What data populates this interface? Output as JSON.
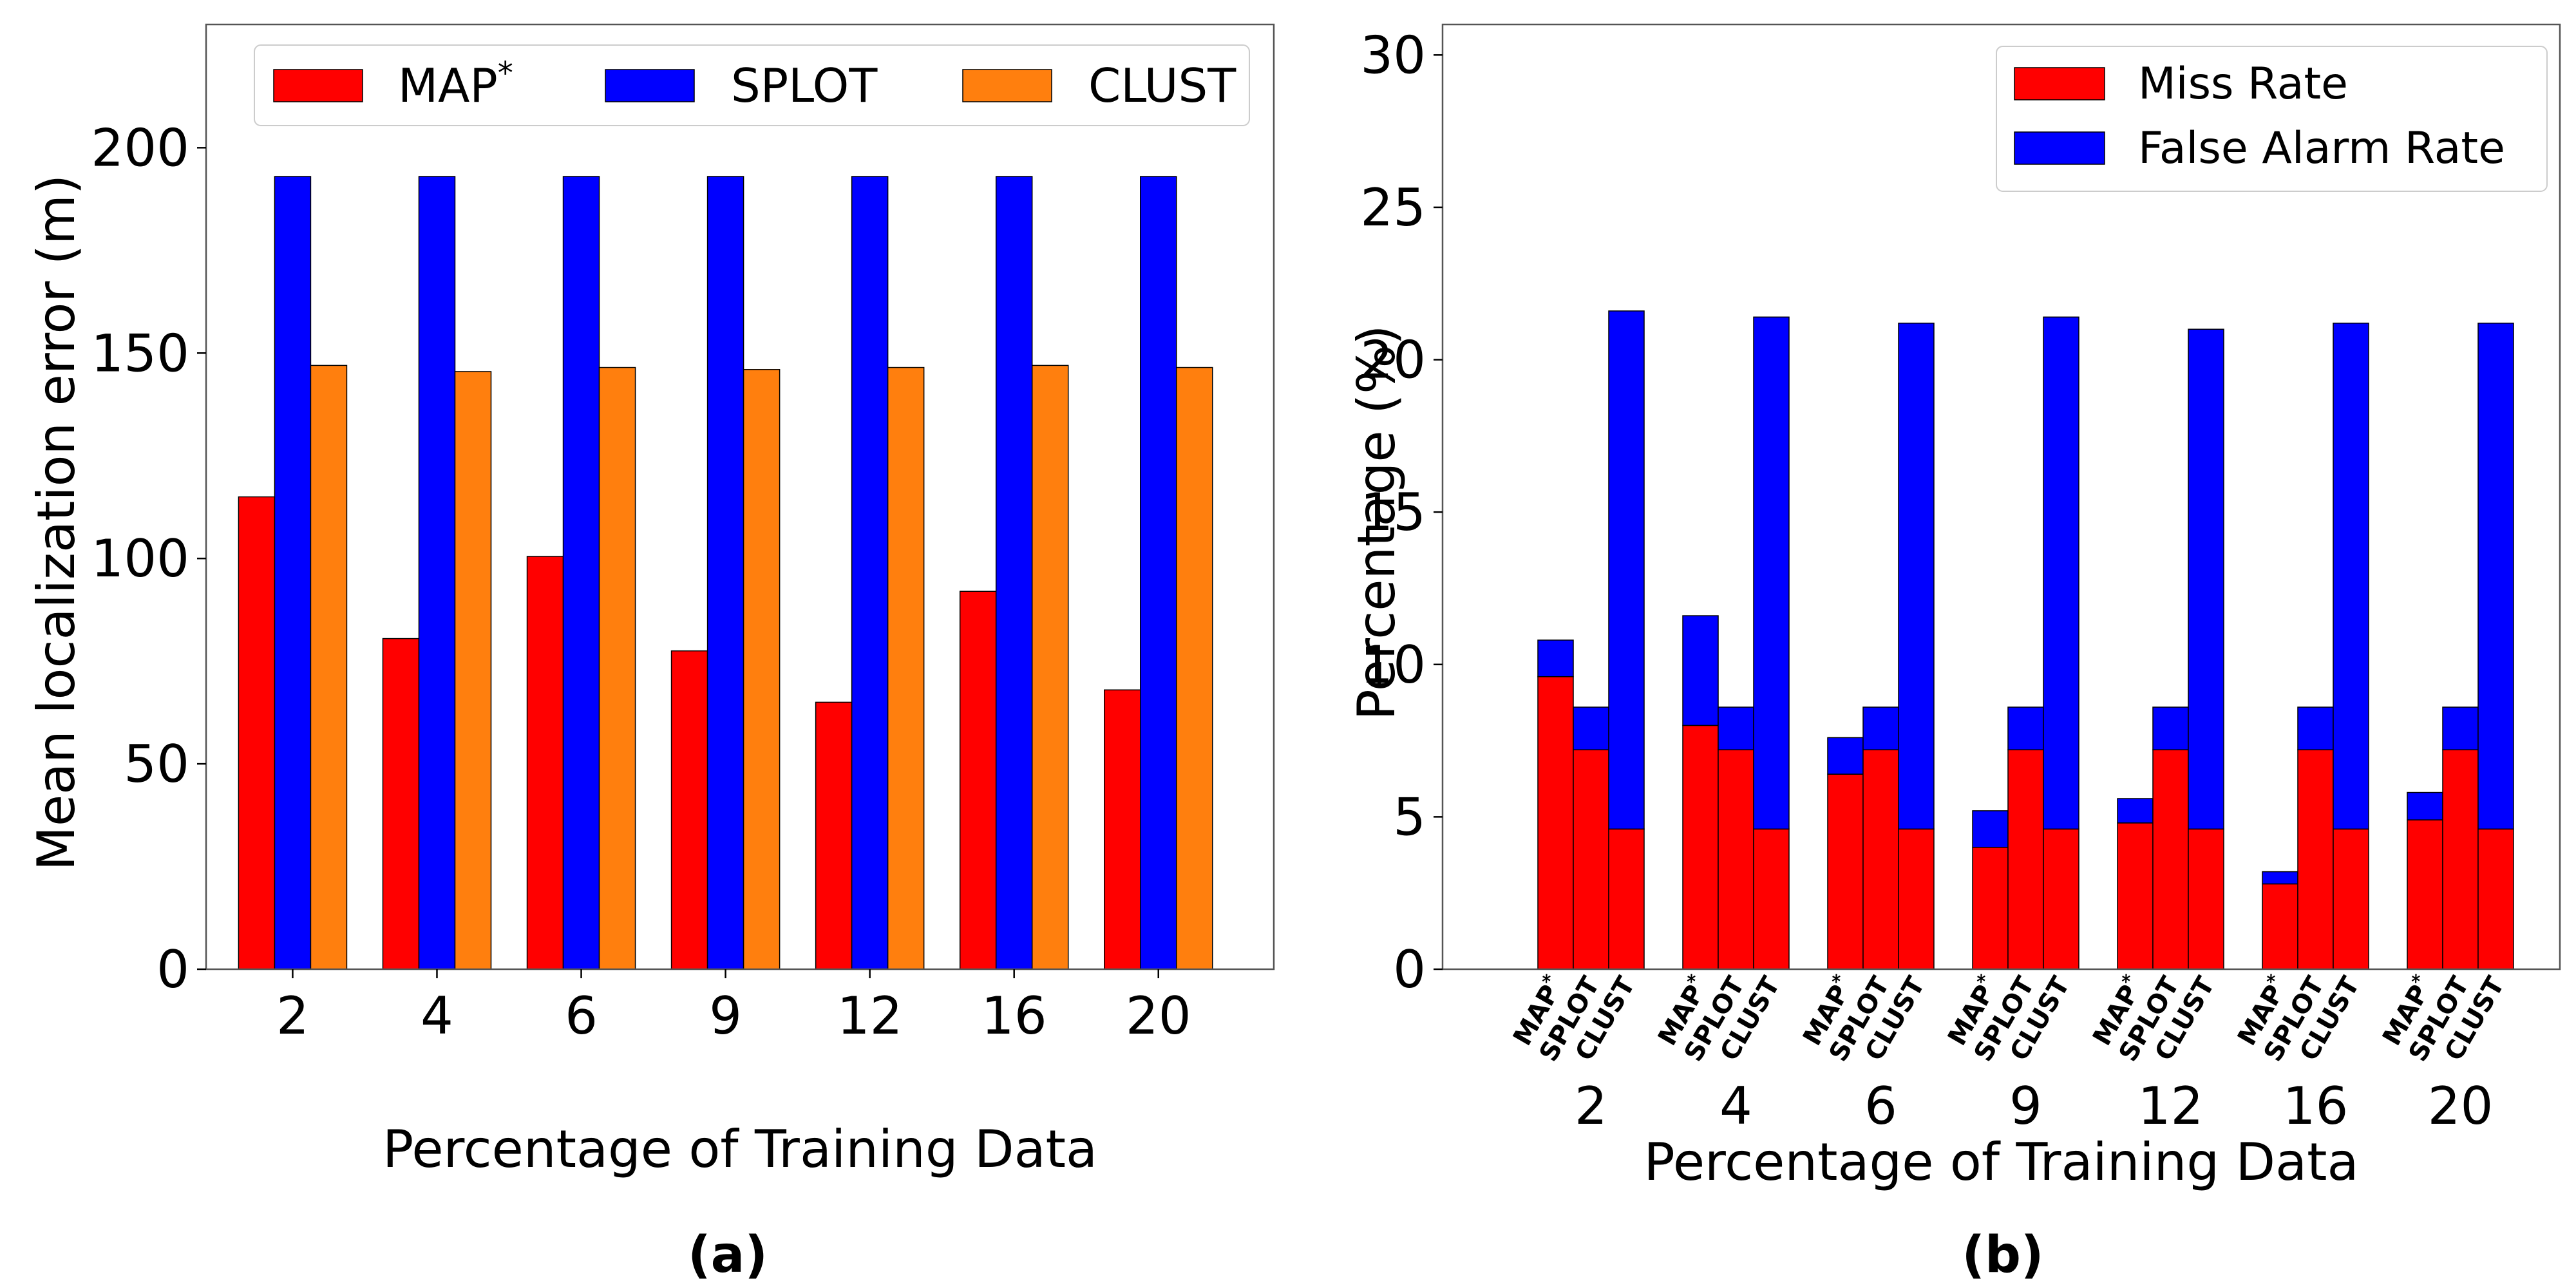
{
  "panel_labels": {
    "a": "(a)",
    "b": "(b)"
  },
  "colors": {
    "map": "#ff0000",
    "splot": "#0000ff",
    "clust": "#ff7f0e",
    "miss": "#ff0000",
    "false_alarm": "#0000ff"
  },
  "chart_data": [
    {
      "type": "bar",
      "title": "",
      "xlabel": "Percentage of Training Data",
      "ylabel": "Mean localization error (m)",
      "categories": [
        "2",
        "4",
        "6",
        "9",
        "12",
        "16",
        "20"
      ],
      "ylim": [
        0,
        230
      ],
      "yticks": [
        0,
        50,
        100,
        150,
        200
      ],
      "grid": false,
      "legend": {
        "placement": "top",
        "ncol": 3
      },
      "series": [
        {
          "name": "MAP",
          "name_sup": "*",
          "color": "#ff0000",
          "values": [
            115,
            80.5,
            100.5,
            77.5,
            65,
            92,
            68
          ]
        },
        {
          "name": "SPLOT",
          "color": "#0000ff",
          "values": [
            193,
            193,
            193,
            193,
            193,
            193,
            193
          ]
        },
        {
          "name": "CLUST",
          "color": "#ff7f0e",
          "values": [
            147,
            145.5,
            146.5,
            146,
            146.5,
            147,
            146.5
          ]
        }
      ]
    },
    {
      "type": "bar",
      "stacked": true,
      "title": "",
      "xlabel": "Percentage of Training Data",
      "ylabel": "Percentage (%)",
      "categories": [
        "2",
        "4",
        "6",
        "9",
        "12",
        "16",
        "20"
      ],
      "methods": [
        {
          "name": "MAP",
          "sup": "*"
        },
        {
          "name": "SPLOT",
          "sup": ""
        },
        {
          "name": "CLUST",
          "sup": ""
        }
      ],
      "ylim": [
        0,
        31
      ],
      "yticks": [
        0,
        5,
        10,
        15,
        20,
        25,
        30
      ],
      "grid": false,
      "legend": {
        "placement": "top-right"
      },
      "series": [
        {
          "name": "Miss Rate",
          "color": "#ff0000",
          "values": [
            [
              9.6,
              7.2,
              4.6
            ],
            [
              8.0,
              7.2,
              4.6
            ],
            [
              6.4,
              7.2,
              4.6
            ],
            [
              4.0,
              7.2,
              4.6
            ],
            [
              4.8,
              7.2,
              4.6
            ],
            [
              2.8,
              7.2,
              4.6
            ],
            [
              4.9,
              7.2,
              4.6
            ]
          ]
        },
        {
          "name": "False Alarm Rate",
          "color": "#0000ff",
          "values": [
            [
              1.2,
              1.4,
              17.0
            ],
            [
              3.6,
              1.4,
              16.8
            ],
            [
              1.2,
              1.4,
              16.6
            ],
            [
              1.2,
              1.4,
              16.8
            ],
            [
              0.8,
              1.4,
              16.4
            ],
            [
              0.4,
              1.4,
              16.6
            ],
            [
              0.9,
              1.4,
              16.6
            ]
          ]
        }
      ]
    }
  ]
}
